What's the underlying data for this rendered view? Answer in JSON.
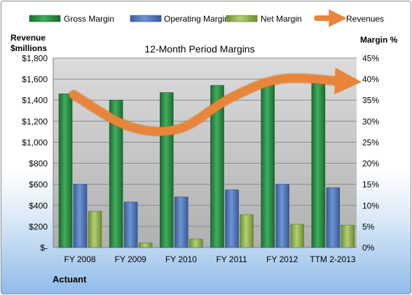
{
  "chart_data": {
    "type": "bar",
    "title": "12-Month Period Margins",
    "categories": [
      "FY 2008",
      "FY 2009",
      "FY 2010",
      "FY 2011",
      "FY 2012",
      "TTM 2-2013"
    ],
    "series": [
      {
        "name": "Gross Margin",
        "axis": "right",
        "values": [
          36.5,
          35.0,
          36.8,
          38.5,
          38.8,
          39.0
        ],
        "color": "#2e8b47"
      },
      {
        "name": "Operating Margin",
        "axis": "right",
        "values": [
          15.0,
          10.8,
          12.0,
          13.7,
          15.0,
          14.2
        ],
        "color": "#4f77b8"
      },
      {
        "name": "Net Margin",
        "axis": "right",
        "values": [
          8.6,
          1.1,
          2.0,
          7.8,
          5.5,
          5.3
        ],
        "color": "#95b552"
      },
      {
        "name": "Revenues",
        "axis": "left",
        "type": "line",
        "values": [
          1450,
          1150,
          1130,
          1420,
          1600,
          1580
        ],
        "color": "#e8853a"
      }
    ],
    "y_left": {
      "title_line1": "Revenue",
      "title_line2": "$millions",
      "range": [
        0,
        1800
      ],
      "ticks": [
        "$-",
        "$200",
        "$400",
        "$600",
        "$800",
        "$1,000",
        "$1,200",
        "$1,400",
        "$1,600",
        "$1,800"
      ]
    },
    "y_right": {
      "title": "Margin %",
      "range": [
        0,
        45
      ],
      "ticks": [
        "0%",
        "5%",
        "10%",
        "15%",
        "20%",
        "25%",
        "30%",
        "35%",
        "40%",
        "45%"
      ]
    },
    "legend_position": "top",
    "grid": true
  },
  "footer_label": "Actuant",
  "colors": {
    "plot_bg_top": "#d9d9d9",
    "plot_bg_bottom": "#b3b3b3",
    "gridline": "#8c8c8c"
  }
}
